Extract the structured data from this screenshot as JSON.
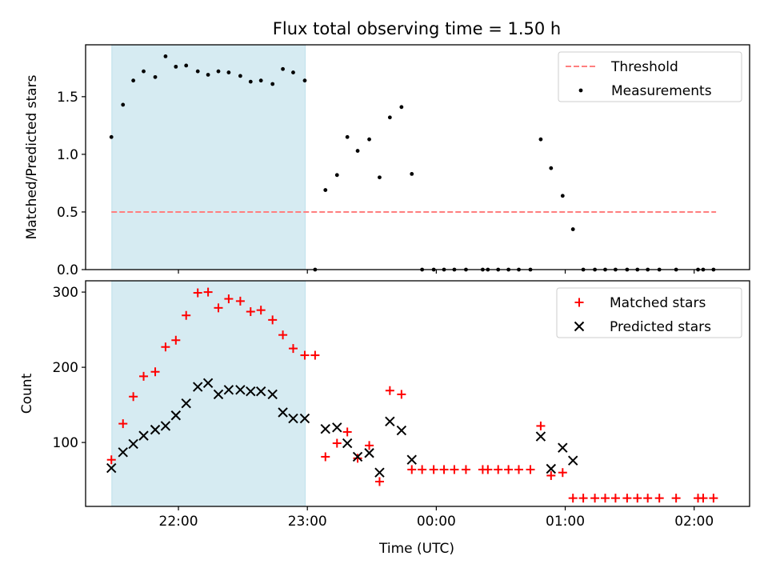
{
  "chart_data": {
    "title": "Flux total observing time = 1.50 h",
    "shade": {
      "x_start": "21:29",
      "x_end": "22:59",
      "color": "#add8e6"
    },
    "x_axis": {
      "label": "Time (UTC)",
      "range_hours": [
        21.28,
        26.43
      ],
      "ticks": [
        {
          "value": 22,
          "label": "22:00"
        },
        {
          "value": 23,
          "label": "23:00"
        },
        {
          "value": 24,
          "label": "00:00"
        },
        {
          "value": 25,
          "label": "01:00"
        },
        {
          "value": 26,
          "label": "02:00"
        }
      ]
    },
    "panels": [
      {
        "type": "scatter",
        "ylabel": "Matched/Predicted stars",
        "ylim": [
          0,
          1.95
        ],
        "yticks": [
          0.0,
          0.5,
          1.0,
          1.5
        ],
        "ytick_labels": [
          "0.0",
          "0.5",
          "1.0",
          "1.5"
        ],
        "legend": {
          "position": "top-right",
          "entries": [
            {
              "label": "Threshold",
              "kind": "dashed-line",
              "color": "#ff7f7f"
            },
            {
              "label": "Measurements",
              "kind": "dot",
              "color": "#000000"
            }
          ]
        },
        "threshold": {
          "value": 0.5,
          "x_range": [
            21.48,
            26.17
          ],
          "color": "#ff7f7f"
        },
        "series": [
          {
            "name": "Measurements",
            "marker": "dot",
            "color": "#000000",
            "points": [
              [
                21.48,
                1.15
              ],
              [
                21.57,
                1.43
              ],
              [
                21.65,
                1.64
              ],
              [
                21.73,
                1.72
              ],
              [
                21.82,
                1.67
              ],
              [
                21.9,
                1.85
              ],
              [
                21.98,
                1.76
              ],
              [
                22.06,
                1.77
              ],
              [
                22.15,
                1.72
              ],
              [
                22.23,
                1.69
              ],
              [
                22.31,
                1.72
              ],
              [
                22.39,
                1.71
              ],
              [
                22.48,
                1.68
              ],
              [
                22.56,
                1.63
              ],
              [
                22.64,
                1.64
              ],
              [
                22.73,
                1.61
              ],
              [
                22.81,
                1.74
              ],
              [
                22.89,
                1.71
              ],
              [
                22.98,
                1.64
              ],
              [
                23.06,
                0.0
              ],
              [
                23.14,
                0.69
              ],
              [
                23.23,
                0.82
              ],
              [
                23.31,
                1.15
              ],
              [
                23.39,
                1.03
              ],
              [
                23.48,
                1.13
              ],
              [
                23.56,
                0.8
              ],
              [
                23.64,
                1.32
              ],
              [
                23.73,
                1.41
              ],
              [
                23.81,
                0.83
              ],
              [
                23.89,
                0.0
              ],
              [
                23.98,
                0.0
              ],
              [
                24.06,
                0.0
              ],
              [
                24.14,
                0.0
              ],
              [
                24.23,
                0.0
              ],
              [
                24.36,
                0.0
              ],
              [
                24.4,
                0.0
              ],
              [
                24.48,
                0.0
              ],
              [
                24.56,
                0.0
              ],
              [
                24.64,
                0.0
              ],
              [
                24.73,
                0.0
              ],
              [
                24.81,
                1.13
              ],
              [
                24.89,
                0.88
              ],
              [
                24.98,
                0.64
              ],
              [
                25.06,
                0.35
              ],
              [
                25.14,
                0.0
              ],
              [
                25.23,
                0.0
              ],
              [
                25.31,
                0.0
              ],
              [
                25.39,
                0.0
              ],
              [
                25.48,
                0.0
              ],
              [
                25.56,
                0.0
              ],
              [
                25.64,
                0.0
              ],
              [
                25.73,
                0.0
              ],
              [
                25.86,
                0.0
              ],
              [
                26.03,
                0.0
              ],
              [
                26.07,
                0.0
              ],
              [
                26.15,
                0.0
              ]
            ]
          }
        ]
      },
      {
        "type": "scatter",
        "ylabel": "Count",
        "ylim": [
          15,
          315
        ],
        "yticks": [
          100,
          200,
          300
        ],
        "ytick_labels": [
          "100",
          "200",
          "300"
        ],
        "legend": {
          "position": "top-right",
          "entries": [
            {
              "label": "Matched stars",
              "kind": "plus",
              "color": "#ff0000"
            },
            {
              "label": "Predicted stars",
              "kind": "x",
              "color": "#000000"
            }
          ]
        },
        "series": [
          {
            "name": "Matched stars",
            "marker": "plus",
            "color": "#ff0000",
            "points": [
              [
                21.48,
                77
              ],
              [
                21.57,
                125
              ],
              [
                21.65,
                161
              ],
              [
                21.73,
                188
              ],
              [
                21.82,
                194
              ],
              [
                21.9,
                227
              ],
              [
                21.98,
                236
              ],
              [
                22.06,
                269
              ],
              [
                22.15,
                299
              ],
              [
                22.23,
                300
              ],
              [
                22.31,
                279
              ],
              [
                22.39,
                291
              ],
              [
                22.48,
                288
              ],
              [
                22.56,
                274
              ],
              [
                22.64,
                276
              ],
              [
                22.73,
                263
              ],
              [
                22.81,
                243
              ],
              [
                22.89,
                225
              ],
              [
                22.98,
                216
              ],
              [
                23.06,
                216
              ],
              [
                23.14,
                81
              ],
              [
                23.23,
                99
              ],
              [
                23.31,
                114
              ],
              [
                23.39,
                79
              ],
              [
                23.48,
                96
              ],
              [
                23.56,
                48
              ],
              [
                23.64,
                169
              ],
              [
                23.73,
                164
              ],
              [
                23.81,
                64
              ],
              [
                23.89,
                64
              ],
              [
                23.98,
                64
              ],
              [
                24.06,
                64
              ],
              [
                24.14,
                64
              ],
              [
                24.23,
                64
              ],
              [
                24.36,
                64
              ],
              [
                24.4,
                64
              ],
              [
                24.48,
                64
              ],
              [
                24.56,
                64
              ],
              [
                24.64,
                64
              ],
              [
                24.73,
                64
              ],
              [
                24.81,
                122
              ],
              [
                24.89,
                56
              ],
              [
                24.98,
                60
              ],
              [
                25.06,
                26
              ],
              [
                25.14,
                26
              ],
              [
                25.23,
                26
              ],
              [
                25.31,
                26
              ],
              [
                25.39,
                26
              ],
              [
                25.48,
                26
              ],
              [
                25.56,
                26
              ],
              [
                25.64,
                26
              ],
              [
                25.73,
                26
              ],
              [
                25.86,
                26
              ],
              [
                26.03,
                26
              ],
              [
                26.07,
                26
              ],
              [
                26.15,
                26
              ]
            ]
          },
          {
            "name": "Predicted stars",
            "marker": "x",
            "color": "#000000",
            "points": [
              [
                21.48,
                66
              ],
              [
                21.57,
                87
              ],
              [
                21.65,
                98
              ],
              [
                21.73,
                109
              ],
              [
                21.82,
                117
              ],
              [
                21.9,
                122
              ],
              [
                21.98,
                136
              ],
              [
                22.06,
                152
              ],
              [
                22.15,
                174
              ],
              [
                22.23,
                179
              ],
              [
                22.31,
                164
              ],
              [
                22.39,
                170
              ],
              [
                22.48,
                170
              ],
              [
                22.56,
                168
              ],
              [
                22.64,
                168
              ],
              [
                22.73,
                164
              ],
              [
                22.81,
                140
              ],
              [
                22.89,
                132
              ],
              [
                22.98,
                132
              ],
              [
                23.14,
                118
              ],
              [
                23.23,
                120
              ],
              [
                23.31,
                99
              ],
              [
                23.39,
                81
              ],
              [
                23.48,
                86
              ],
              [
                23.56,
                60
              ],
              [
                23.64,
                128
              ],
              [
                23.73,
                116
              ],
              [
                23.81,
                77
              ],
              [
                24.81,
                108
              ],
              [
                24.89,
                65
              ],
              [
                24.98,
                93
              ],
              [
                25.06,
                76
              ]
            ]
          }
        ]
      }
    ]
  }
}
